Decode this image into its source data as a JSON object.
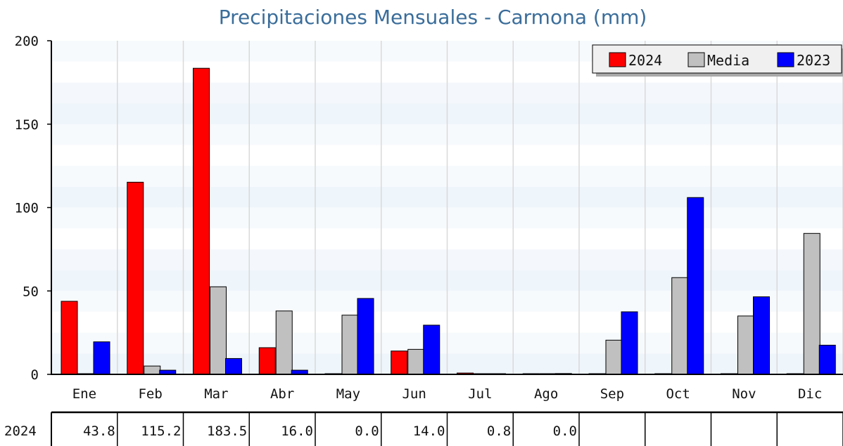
{
  "chart_data": {
    "type": "bar",
    "title": "Precipitaciones Mensuales - Carmona (mm)",
    "categories": [
      "Ene",
      "Feb",
      "Mar",
      "Abr",
      "May",
      "Jun",
      "Jul",
      "Ago",
      "Sep",
      "Oct",
      "Nov",
      "Dic"
    ],
    "series": [
      {
        "name": "2024",
        "color": "#ff0000",
        "values": [
          43.8,
          115.2,
          183.5,
          16.0,
          0.0,
          14.0,
          0.8,
          0.0,
          0,
          0,
          0,
          0
        ]
      },
      {
        "name": "Media",
        "color": "#c0c0c0",
        "values": [
          0,
          5,
          52.5,
          38,
          35.5,
          15,
          0,
          0,
          20.5,
          58,
          35,
          84.5
        ]
      },
      {
        "name": "2023",
        "color": "#0000ff",
        "values": [
          19.5,
          2.5,
          9.5,
          2.5,
          45.5,
          29.5,
          0,
          0.5,
          37.5,
          106,
          46.5,
          17.5
        ]
      }
    ],
    "yticks": [
      0,
      50,
      100,
      150,
      200
    ],
    "ylim": [
      0,
      200
    ],
    "legend_position": "top-right",
    "grid": true,
    "table": {
      "row_label": "2024",
      "values": [
        "43.8",
        "115.2",
        "183.5",
        "16.0",
        "0.0",
        "14.0",
        "0.8",
        "0.0",
        "",
        "",
        "",
        ""
      ]
    }
  }
}
